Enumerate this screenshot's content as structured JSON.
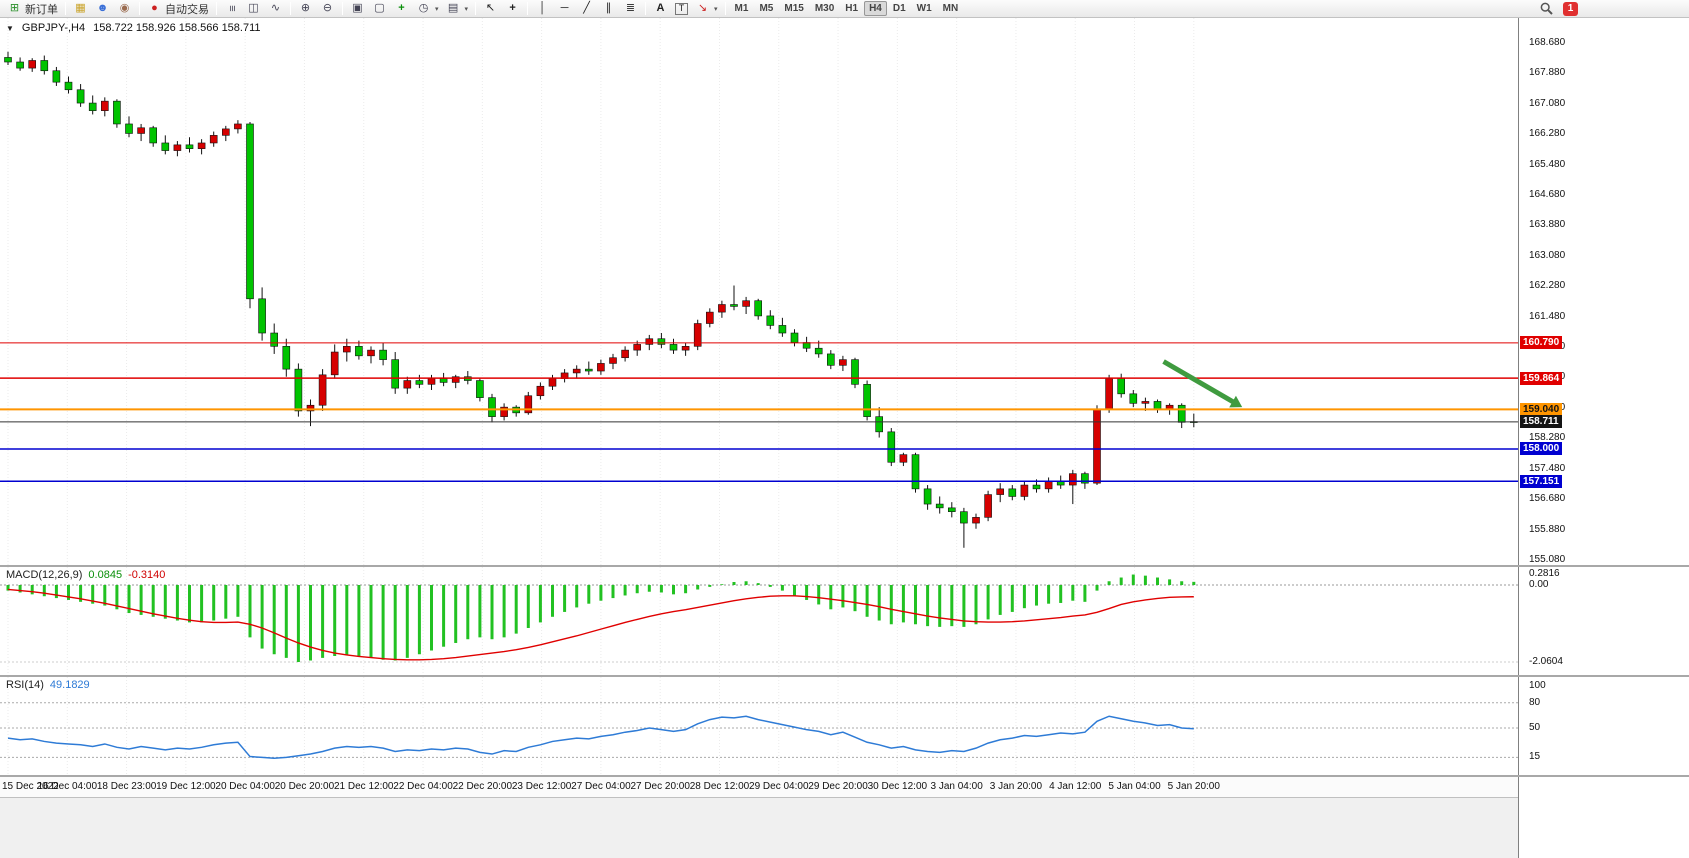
{
  "toolbar": {
    "new_order_label": "新订单",
    "auto_trading_label": "自动交易",
    "timeframes": [
      "M1",
      "M5",
      "M15",
      "M30",
      "H1",
      "H4",
      "D1",
      "W1",
      "MN"
    ],
    "active_timeframe": "H4",
    "notification_count": "1",
    "items": [
      {
        "t": "btn",
        "name": "new-order",
        "icon": "⊞",
        "ic": "#2a8f2a",
        "label": "新订单"
      },
      {
        "t": "sep"
      },
      {
        "t": "ico",
        "name": "charts",
        "icon": "▦",
        "ic": "#c9a227"
      },
      {
        "t": "ico",
        "name": "profiles",
        "icon": "☻",
        "ic": "#3a6fd8"
      },
      {
        "t": "ico",
        "name": "alerts",
        "icon": "◉",
        "ic": "#9a6b4f"
      },
      {
        "t": "sep"
      },
      {
        "t": "btn",
        "name": "auto-trading",
        "icon": "●",
        "ic": "#cc2020",
        "label": "自动交易"
      },
      {
        "t": "sep"
      },
      {
        "t": "ico",
        "name": "bar-chart",
        "icon": "≡",
        "ic": "#445",
        "rot": 90
      },
      {
        "t": "ico",
        "name": "candlestick-chart",
        "icon": "◫",
        "ic": "#445"
      },
      {
        "t": "ico",
        "name": "line-chart",
        "icon": "∿",
        "ic": "#445"
      },
      {
        "t": "sep"
      },
      {
        "t": "ico",
        "name": "zoom-in",
        "icon": "⊕",
        "ic": "#445"
      },
      {
        "t": "ico",
        "name": "zoom-out",
        "icon": "⊖",
        "ic": "#445"
      },
      {
        "t": "sep"
      },
      {
        "t": "ico",
        "name": "tile-windows",
        "icon": "▣",
        "ic": "#445"
      },
      {
        "t": "ico",
        "name": "arrange-windows",
        "icon": "▢",
        "ic": "#445"
      },
      {
        "t": "ico",
        "name": "indicators",
        "icon": "+",
        "ic": "#0a8f0a",
        "bold": true
      },
      {
        "t": "ico",
        "name": "periods",
        "icon": "◷",
        "ic": "#445",
        "dd": true
      },
      {
        "t": "ico",
        "name": "templates",
        "icon": "▤",
        "ic": "#445",
        "dd": true
      },
      {
        "t": "sep"
      },
      {
        "t": "ico",
        "name": "cursor",
        "icon": "↖",
        "ic": "#222"
      },
      {
        "t": "ico",
        "name": "crosshair",
        "icon": "+",
        "ic": "#222",
        "bold": true
      },
      {
        "t": "sep"
      },
      {
        "t": "ico",
        "name": "vertical-line",
        "icon": "│",
        "ic": "#222"
      },
      {
        "t": "ico",
        "name": "horizontal-line",
        "icon": "─",
        "ic": "#222"
      },
      {
        "t": "ico",
        "name": "trendline",
        "icon": "╱",
        "ic": "#222"
      },
      {
        "t": "ico",
        "name": "equidist-channel",
        "icon": "∥",
        "ic": "#222"
      },
      {
        "t": "ico",
        "name": "fibonacci",
        "icon": "≣",
        "ic": "#222"
      },
      {
        "t": "sep"
      },
      {
        "t": "ico",
        "name": "text",
        "icon": "A",
        "ic": "#222",
        "bold": true
      },
      {
        "t": "ico",
        "name": "text-label",
        "icon": "T",
        "ic": "#222",
        "box": true
      },
      {
        "t": "ico",
        "name": "arrows-tool",
        "icon": "↘",
        "ic": "#c22",
        "dd": true
      },
      {
        "t": "sep"
      },
      {
        "t": "tfgroup"
      },
      {
        "t": "spacer"
      },
      {
        "t": "search"
      },
      {
        "t": "badge"
      },
      {
        "t": "endpad"
      }
    ]
  },
  "chart": {
    "menu_arrow": "▼",
    "symbol_period": "GBPJPY-,H4",
    "ohlc_text": "158.722 158.926 158.566 158.711",
    "open": "158.722",
    "high": "158.926",
    "low": "158.566",
    "close": "158.711"
  },
  "chart_data": {
    "type": "candlestick",
    "symbol": "GBPJPY-",
    "timeframe": "H4",
    "bull_color": "#d60000",
    "bear_color": "#00c400",
    "price_axis": {
      "top": 168.68,
      "step": 0.8,
      "count": 18
    },
    "time_labels": [
      "15 Dec 2022",
      "16 Dec 04:00",
      "18 Dec 23:00",
      "19 Dec 12:00",
      "20 Dec 04:00",
      "20 Dec 20:00",
      "21 Dec 12:00",
      "22 Dec 04:00",
      "22 Dec 20:00",
      "23 Dec 12:00",
      "27 Dec 04:00",
      "27 Dec 20:00",
      "28 Dec 12:00",
      "29 Dec 04:00",
      "29 Dec 20:00",
      "30 Dec 12:00",
      "3 Jan 04:00",
      "3 Jan 20:00",
      "4 Jan 12:00",
      "5 Jan 04:00",
      "5 Jan 20:00"
    ],
    "candles": [
      [
        168.3,
        168.45,
        168.1,
        168.18
      ],
      [
        168.18,
        168.3,
        167.95,
        168.02
      ],
      [
        168.02,
        168.28,
        167.92,
        168.22
      ],
      [
        168.22,
        168.35,
        167.85,
        167.95
      ],
      [
        167.95,
        168.05,
        167.55,
        167.65
      ],
      [
        167.65,
        167.8,
        167.35,
        167.45
      ],
      [
        167.45,
        167.6,
        167.0,
        167.1
      ],
      [
        167.1,
        167.3,
        166.8,
        166.9
      ],
      [
        166.9,
        167.25,
        166.75,
        167.15
      ],
      [
        167.15,
        167.2,
        166.45,
        166.55
      ],
      [
        166.55,
        166.75,
        166.2,
        166.3
      ],
      [
        166.3,
        166.55,
        166.1,
        166.45
      ],
      [
        166.45,
        166.5,
        165.95,
        166.05
      ],
      [
        166.05,
        166.25,
        165.75,
        165.85
      ],
      [
        165.85,
        166.1,
        165.7,
        166.0
      ],
      [
        166.0,
        166.2,
        165.8,
        165.9
      ],
      [
        165.9,
        166.15,
        165.75,
        166.05
      ],
      [
        166.05,
        166.35,
        165.95,
        166.25
      ],
      [
        166.25,
        166.5,
        166.1,
        166.42
      ],
      [
        166.42,
        166.65,
        166.3,
        166.55
      ],
      [
        166.55,
        166.6,
        161.7,
        161.95
      ],
      [
        161.95,
        162.25,
        160.85,
        161.05
      ],
      [
        161.05,
        161.3,
        160.5,
        160.7
      ],
      [
        160.7,
        160.9,
        159.9,
        160.1
      ],
      [
        160.1,
        160.25,
        158.85,
        159.0
      ],
      [
        159.0,
        159.3,
        158.6,
        159.15
      ],
      [
        159.15,
        160.1,
        159.0,
        159.95
      ],
      [
        159.95,
        160.75,
        159.85,
        160.55
      ],
      [
        160.55,
        160.9,
        160.3,
        160.7
      ],
      [
        160.7,
        160.85,
        160.35,
        160.45
      ],
      [
        160.45,
        160.7,
        160.25,
        160.6
      ],
      [
        160.6,
        160.8,
        160.2,
        160.35
      ],
      [
        160.35,
        160.55,
        159.45,
        159.6
      ],
      [
        159.6,
        159.9,
        159.45,
        159.8
      ],
      [
        159.8,
        159.95,
        159.6,
        159.7
      ],
      [
        159.7,
        159.95,
        159.55,
        159.85
      ],
      [
        159.85,
        160.0,
        159.65,
        159.75
      ],
      [
        159.75,
        159.95,
        159.6,
        159.9
      ],
      [
        159.9,
        160.05,
        159.7,
        159.8
      ],
      [
        159.8,
        159.85,
        159.25,
        159.35
      ],
      [
        159.35,
        159.45,
        158.7,
        158.85
      ],
      [
        158.85,
        159.2,
        158.75,
        159.1
      ],
      [
        159.1,
        159.15,
        158.85,
        158.95
      ],
      [
        158.95,
        159.5,
        158.9,
        159.4
      ],
      [
        159.4,
        159.75,
        159.3,
        159.65
      ],
      [
        159.65,
        159.95,
        159.55,
        159.85
      ],
      [
        159.85,
        160.1,
        159.75,
        160.0
      ],
      [
        160.0,
        160.2,
        159.85,
        160.1
      ],
      [
        160.1,
        160.3,
        159.95,
        160.05
      ],
      [
        160.05,
        160.35,
        159.95,
        160.25
      ],
      [
        160.25,
        160.5,
        160.1,
        160.4
      ],
      [
        160.4,
        160.7,
        160.3,
        160.6
      ],
      [
        160.6,
        160.85,
        160.45,
        160.75
      ],
      [
        160.75,
        161.0,
        160.6,
        160.9
      ],
      [
        160.9,
        161.05,
        160.65,
        160.75
      ],
      [
        160.75,
        160.9,
        160.5,
        160.6
      ],
      [
        160.6,
        160.8,
        160.45,
        160.7
      ],
      [
        160.7,
        161.4,
        160.6,
        161.3
      ],
      [
        161.3,
        161.7,
        161.2,
        161.6
      ],
      [
        161.6,
        161.9,
        161.45,
        161.8
      ],
      [
        161.8,
        162.3,
        161.65,
        161.75
      ],
      [
        161.75,
        162.0,
        161.55,
        161.9
      ],
      [
        161.9,
        161.95,
        161.4,
        161.5
      ],
      [
        161.5,
        161.65,
        161.15,
        161.25
      ],
      [
        161.25,
        161.45,
        160.95,
        161.05
      ],
      [
        161.05,
        161.15,
        160.7,
        160.8
      ],
      [
        160.8,
        160.95,
        160.55,
        160.65
      ],
      [
        160.65,
        160.85,
        160.4,
        160.5
      ],
      [
        160.5,
        160.6,
        160.1,
        160.2
      ],
      [
        160.2,
        160.45,
        160.05,
        160.35
      ],
      [
        160.35,
        160.4,
        159.6,
        159.7
      ],
      [
        159.7,
        159.8,
        158.75,
        158.85
      ],
      [
        158.85,
        159.1,
        158.3,
        158.45
      ],
      [
        158.45,
        158.55,
        157.55,
        157.65
      ],
      [
        157.65,
        157.9,
        157.55,
        157.85
      ],
      [
        157.85,
        157.9,
        156.85,
        156.95
      ],
      [
        156.95,
        157.05,
        156.4,
        156.55
      ],
      [
        156.55,
        156.75,
        156.3,
        156.45
      ],
      [
        156.45,
        156.6,
        156.2,
        156.35
      ],
      [
        156.35,
        156.45,
        155.4,
        156.05
      ],
      [
        156.05,
        156.3,
        155.9,
        156.2
      ],
      [
        156.2,
        156.9,
        156.1,
        156.8
      ],
      [
        156.8,
        157.1,
        156.6,
        156.95
      ],
      [
        156.95,
        157.05,
        156.65,
        156.75
      ],
      [
        156.75,
        157.15,
        156.65,
        157.05
      ],
      [
        157.05,
        157.2,
        156.85,
        156.95
      ],
      [
        156.95,
        157.25,
        156.85,
        157.15
      ],
      [
        157.15,
        157.3,
        156.95,
        157.05
      ],
      [
        157.05,
        157.45,
        156.55,
        157.35
      ],
      [
        157.35,
        157.4,
        156.95,
        157.1
      ],
      [
        157.1,
        159.15,
        157.05,
        159.05
      ],
      [
        159.05,
        159.95,
        158.95,
        159.85
      ],
      [
        159.85,
        159.98,
        159.35,
        159.45
      ],
      [
        159.45,
        159.55,
        159.1,
        159.2
      ],
      [
        159.2,
        159.35,
        159.0,
        159.25
      ],
      [
        159.25,
        159.3,
        158.95,
        159.05
      ],
      [
        159.05,
        159.2,
        158.9,
        159.15
      ],
      [
        159.15,
        159.2,
        158.55,
        158.7
      ],
      [
        158.72,
        158.93,
        158.57,
        158.71
      ]
    ],
    "hlines": [
      {
        "price": 160.79,
        "color": "#e00000",
        "width": 1
      },
      {
        "price": 159.864,
        "color": "#e00000",
        "width": 1.5
      },
      {
        "price": 159.04,
        "color": "#ff9500",
        "width": 2
      },
      {
        "price": 158.711,
        "color": "#333333",
        "width": 1
      },
      {
        "price": 158.0,
        "color": "#0000d0",
        "width": 1.5
      },
      {
        "price": 157.151,
        "color": "#0000d0",
        "width": 1.5
      }
    ],
    "price_tags": [
      {
        "text": "160.790",
        "price": 160.79,
        "bg": "#e00000",
        "fg": "#ffffff"
      },
      {
        "text": "159.864",
        "price": 159.864,
        "bg": "#e00000",
        "fg": "#ffffff"
      },
      {
        "text": "159.040",
        "price": 159.04,
        "bg": "#ff9500",
        "fg": "#111111"
      },
      {
        "text": "158.711",
        "price": 158.711,
        "bg": "#141414",
        "fg": "#ffffff"
      },
      {
        "text": "158.000",
        "price": 158.0,
        "bg": "#0000d0",
        "fg": "#ffffff"
      },
      {
        "text": "157.151",
        "price": 157.151,
        "bg": "#0000d0",
        "fg": "#ffffff"
      }
    ],
    "drawings": [
      {
        "type": "arrow",
        "from_index": 95.5,
        "from_price": 160.3,
        "to_index": 102,
        "to_price": 159.1,
        "color": "#3f9b3f",
        "width": 5
      }
    ],
    "macd": {
      "label": "MACD(12,26,9)",
      "main_text": "0.0845",
      "signal_text": "-0.3140",
      "hist_color": "#22c122",
      "signal_color": "#e00000",
      "axis": [
        {
          "t": "0.2816",
          "v": 0.2816
        },
        {
          "t": "0.00",
          "v": 0
        },
        {
          "t": "-2.0604",
          "v": -2.0604
        }
      ],
      "hist": [
        -0.15,
        -0.2,
        -0.25,
        -0.3,
        -0.35,
        -0.4,
        -0.45,
        -0.5,
        -0.55,
        -0.65,
        -0.75,
        -0.8,
        -0.85,
        -0.9,
        -0.95,
        -1.0,
        -1.0,
        -0.95,
        -0.9,
        -0.85,
        -1.4,
        -1.7,
        -1.85,
        -1.95,
        -2.06,
        -2.02,
        -1.95,
        -1.9,
        -1.88,
        -1.9,
        -1.95,
        -2.0,
        -2.02,
        -1.95,
        -1.85,
        -1.75,
        -1.65,
        -1.55,
        -1.45,
        -1.4,
        -1.45,
        -1.4,
        -1.3,
        -1.15,
        -1.0,
        -0.85,
        -0.72,
        -0.6,
        -0.5,
        -0.42,
        -0.35,
        -0.28,
        -0.22,
        -0.18,
        -0.2,
        -0.25,
        -0.22,
        -0.12,
        -0.05,
        0.02,
        0.08,
        0.1,
        0.05,
        -0.05,
        -0.15,
        -0.28,
        -0.4,
        -0.52,
        -0.65,
        -0.6,
        -0.7,
        -0.85,
        -0.95,
        -1.05,
        -1.0,
        -1.05,
        -1.1,
        -1.12,
        -1.1,
        -1.12,
        -1.05,
        -0.92,
        -0.8,
        -0.72,
        -0.62,
        -0.55,
        -0.5,
        -0.48,
        -0.42,
        -0.45,
        -0.15,
        0.1,
        0.2,
        0.28,
        0.25,
        0.2,
        0.15,
        0.1,
        0.0845
      ],
      "signal": [
        -0.12,
        -0.15,
        -0.18,
        -0.22,
        -0.27,
        -0.32,
        -0.37,
        -0.43,
        -0.49,
        -0.56,
        -0.63,
        -0.7,
        -0.77,
        -0.83,
        -0.89,
        -0.94,
        -0.98,
        -1.0,
        -1.0,
        -0.99,
        -1.05,
        -1.15,
        -1.28,
        -1.42,
        -1.55,
        -1.66,
        -1.75,
        -1.82,
        -1.87,
        -1.91,
        -1.94,
        -1.97,
        -1.99,
        -2.0,
        -2.0,
        -1.99,
        -1.97,
        -1.94,
        -1.9,
        -1.86,
        -1.82,
        -1.78,
        -1.73,
        -1.67,
        -1.6,
        -1.52,
        -1.44,
        -1.36,
        -1.27,
        -1.18,
        -1.09,
        -1.0,
        -0.92,
        -0.84,
        -0.77,
        -0.71,
        -0.66,
        -0.6,
        -0.54,
        -0.48,
        -0.42,
        -0.37,
        -0.33,
        -0.3,
        -0.29,
        -0.29,
        -0.31,
        -0.34,
        -0.38,
        -0.42,
        -0.47,
        -0.52,
        -0.58,
        -0.65,
        -0.71,
        -0.77,
        -0.83,
        -0.88,
        -0.92,
        -0.96,
        -0.98,
        -0.99,
        -0.99,
        -0.98,
        -0.96,
        -0.93,
        -0.9,
        -0.87,
        -0.83,
        -0.8,
        -0.73,
        -0.63,
        -0.52,
        -0.45,
        -0.4,
        -0.36,
        -0.33,
        -0.32,
        -0.314
      ]
    },
    "rsi": {
      "label": "RSI(14)",
      "value_text": "49.1829",
      "color": "#2e7bd6",
      "levels": [
        80,
        50,
        15
      ],
      "axis": [
        {
          "t": "100",
          "v": 100
        },
        {
          "t": "80",
          "v": 80
        },
        {
          "t": "50",
          "v": 50
        },
        {
          "t": "15",
          "v": 15
        }
      ],
      "series": [
        38,
        36,
        37,
        34,
        32,
        31,
        30,
        28,
        31,
        27,
        25,
        28,
        26,
        24,
        26,
        25,
        27,
        30,
        32,
        33,
        16,
        15,
        14,
        15,
        17,
        19,
        22,
        26,
        28,
        27,
        28,
        26,
        22,
        24,
        23,
        25,
        24,
        26,
        25,
        21,
        19,
        23,
        22,
        27,
        30,
        34,
        36,
        38,
        37,
        40,
        42,
        45,
        47,
        50,
        48,
        46,
        48,
        55,
        60,
        63,
        62,
        64,
        60,
        57,
        54,
        51,
        48,
        46,
        42,
        45,
        39,
        33,
        30,
        26,
        28,
        24,
        22,
        21,
        23,
        22,
        26,
        32,
        36,
        38,
        41,
        40,
        42,
        44,
        43,
        45,
        58,
        64,
        61,
        58,
        56,
        53,
        54,
        50,
        49.18
      ]
    }
  }
}
